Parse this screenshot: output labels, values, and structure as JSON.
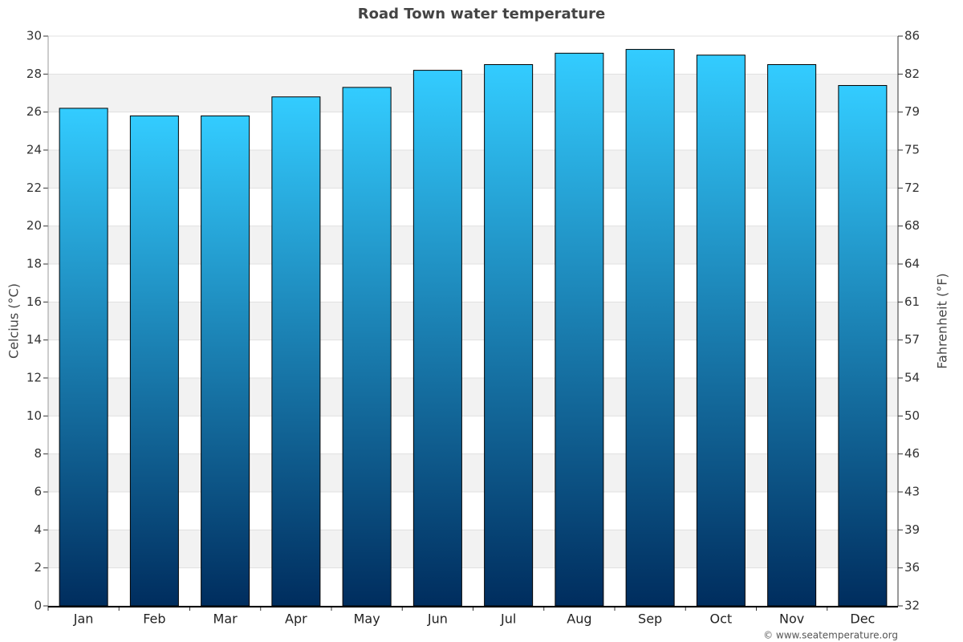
{
  "chart_data": {
    "type": "bar",
    "title": "Road Town water temperature",
    "categories": [
      "Jan",
      "Feb",
      "Mar",
      "Apr",
      "May",
      "Jun",
      "Jul",
      "Aug",
      "Sep",
      "Oct",
      "Nov",
      "Dec"
    ],
    "values": [
      26.2,
      25.8,
      25.8,
      26.8,
      27.3,
      28.2,
      28.5,
      29.1,
      29.3,
      29.0,
      28.5,
      27.4
    ],
    "color_top": "#33ccff",
    "color_bottom": "#002d5e",
    "ylabel": "Celcius (°C)",
    "y2label": "Fahrenheit (°F)",
    "ylim": [
      0,
      30
    ],
    "yticks": [
      0,
      2,
      4,
      6,
      8,
      10,
      12,
      14,
      16,
      18,
      20,
      22,
      24,
      26,
      28,
      30
    ],
    "y2lim": [
      32,
      86
    ],
    "y2ticks": [
      32,
      {
        "value": 35.6,
        "label": "36"
      },
      {
        "value": 39.2,
        "label": "39"
      },
      {
        "value": 42.8,
        "label": "43"
      },
      {
        "value": 46.4,
        "label": "46"
      },
      50,
      {
        "value": 53.6,
        "label": "54"
      },
      {
        "value": 57.2,
        "label": "57"
      },
      {
        "value": 60.8,
        "label": "61"
      },
      {
        "value": 64.4,
        "label": "64"
      },
      68,
      {
        "value": 71.6,
        "label": "72"
      },
      {
        "value": 75.2,
        "label": "75"
      },
      {
        "value": 78.8,
        "label": "79"
      },
      {
        "value": 82.4,
        "label": "82"
      },
      86
    ],
    "grid": true,
    "credit": "© www.seatemperature.org"
  }
}
